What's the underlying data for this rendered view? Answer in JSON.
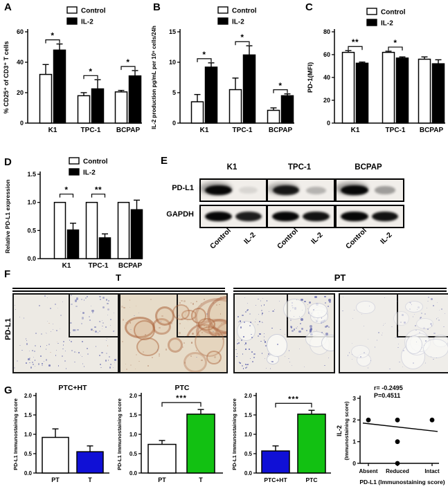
{
  "panel_labels": {
    "a": "A",
    "b": "B",
    "c": "C",
    "d": "D",
    "e": "E",
    "f": "F",
    "g": "G"
  },
  "colors": {
    "control_fill": "#ffffff",
    "il2_fill": "#000000",
    "axis": "#000000",
    "blue": "#1010d6",
    "green": "#12c112",
    "hematoxylin": "#5c61aa",
    "dab_brown": "#a9653c",
    "tissue_pale": "#edeae4",
    "tissue_dab": "#e7dcc9",
    "tissue_light": "#efede9"
  },
  "chart_data": [
    {
      "id": "A",
      "type": "bar",
      "title": "",
      "ylabel": "% CD25⁺ of CD3⁺ T cells",
      "legend": [
        "Control",
        "IL-2"
      ],
      "categories": [
        "K1",
        "TPC-1",
        "BCPAP"
      ],
      "series": [
        {
          "name": "Control",
          "values": [
            32,
            18,
            20.5
          ],
          "errors": [
            6.5,
            2,
            1
          ]
        },
        {
          "name": "IL-2",
          "values": [
            48,
            22.5,
            31
          ],
          "errors": [
            4,
            6,
            3.5
          ]
        }
      ],
      "ylim": [
        0,
        60
      ],
      "yticks": [
        0,
        20,
        40,
        60
      ],
      "ytick_decimals": 0,
      "sig": [
        "*",
        "*",
        "*"
      ]
    },
    {
      "id": "B",
      "type": "bar",
      "title": "",
      "ylabel": "IL-2 production pg/mL per 10⁶ cells/24h",
      "legend": [
        "Control",
        "IL-2"
      ],
      "categories": [
        "K1",
        "TPC-1",
        "BCPAP"
      ],
      "series": [
        {
          "name": "Control",
          "values": [
            3.5,
            5.5,
            2.1
          ],
          "errors": [
            1.2,
            1.9,
            0.4
          ]
        },
        {
          "name": "IL-2",
          "values": [
            9.2,
            11.2,
            4.5
          ],
          "errors": [
            0.7,
            1.5,
            0.3
          ]
        }
      ],
      "ylim": [
        0,
        15
      ],
      "yticks": [
        0,
        5,
        10,
        15
      ],
      "ytick_decimals": 0,
      "sig": [
        "*",
        "*",
        "*"
      ]
    },
    {
      "id": "C",
      "type": "bar",
      "title": "",
      "ylabel": "PD-1(MFI)",
      "legend": [
        "Control",
        "IL-2"
      ],
      "categories": [
        "K1",
        "TPC-1",
        "BCPAP"
      ],
      "series": [
        {
          "name": "Control",
          "values": [
            62,
            62,
            56
          ],
          "errors": [
            1.5,
            1,
            2
          ]
        },
        {
          "name": "IL-2",
          "values": [
            52.5,
            57,
            52
          ],
          "errors": [
            1,
            1,
            3.5
          ]
        }
      ],
      "ylim": [
        0,
        80
      ],
      "yticks": [
        0,
        20,
        40,
        60,
        80
      ],
      "ytick_decimals": 0,
      "sig": [
        "**",
        "*",
        ""
      ]
    },
    {
      "id": "D",
      "type": "bar",
      "title": "",
      "ylabel": "Relative PD-L1 expression",
      "legend": [
        "Control",
        "IL-2"
      ],
      "categories": [
        "K1",
        "TPC-1",
        "BCPAP"
      ],
      "series": [
        {
          "name": "Control",
          "values": [
            1.0,
            1.0,
            1.0
          ],
          "errors": [
            0,
            0,
            0
          ]
        },
        {
          "name": "IL-2",
          "values": [
            0.51,
            0.37,
            0.87
          ],
          "errors": [
            0.12,
            0.07,
            0.17
          ]
        }
      ],
      "ylim": [
        0,
        1.5
      ],
      "yticks": [
        0,
        0.5,
        1.0,
        1.5
      ],
      "ytick_decimals": 1,
      "sig": [
        "*",
        "**",
        ""
      ]
    },
    {
      "id": "G1",
      "type": "bar",
      "title": "PTC+HT",
      "ylabel": "PD-L1 Immunostaining score",
      "categories": [
        "PT",
        "T"
      ],
      "values": [
        0.92,
        0.55
      ],
      "errors": [
        0.22,
        0.15
      ],
      "bar_colors": [
        "#ffffff",
        "#1010d6"
      ],
      "ylim": [
        0,
        2
      ],
      "yticks": [
        0,
        0.5,
        1.0,
        1.5,
        2.0
      ],
      "ytick_decimals": 1,
      "sig_pair": ""
    },
    {
      "id": "G2",
      "type": "bar",
      "title": "PTC",
      "ylabel": "PD-L1 Immunostaining score",
      "categories": [
        "PT",
        "T"
      ],
      "values": [
        0.74,
        1.52
      ],
      "errors": [
        0.1,
        0.12
      ],
      "bar_colors": [
        "#ffffff",
        "#12c112"
      ],
      "ylim": [
        0,
        2
      ],
      "yticks": [
        0,
        0.5,
        1.0,
        1.5,
        2.0
      ],
      "ytick_decimals": 1,
      "sig_pair": "***"
    },
    {
      "id": "G3",
      "type": "bar",
      "title": "",
      "ylabel": "PD-L1 Immunostaining score",
      "categories": [
        "PTC+HT",
        "PTC"
      ],
      "values": [
        0.57,
        1.52
      ],
      "errors": [
        0.13,
        0.1
      ],
      "bar_colors": [
        "#1010d6",
        "#12c112"
      ],
      "ylim": [
        0,
        2
      ],
      "yticks": [
        0,
        0.5,
        1.0,
        1.5,
        2.0
      ],
      "ytick_decimals": 1,
      "sig_pair": "***"
    },
    {
      "id": "G4",
      "type": "scatter",
      "annotation": [
        "r= -0.2495",
        "P=0.4511"
      ],
      "ylabel": "IL-2",
      "ylabel2": "(Immunostaining score)",
      "xlabel": "PD-L1 (Immunostaining score)",
      "xticks": [
        "Absent",
        "Reduced",
        "Intact"
      ],
      "ylim": [
        0,
        3
      ],
      "yticks": [
        0,
        1,
        2,
        3
      ],
      "ytick_decimals": 0,
      "points": [
        [
          0,
          2
        ],
        [
          1,
          0
        ],
        [
          1,
          1
        ],
        [
          1,
          2
        ],
        [
          2,
          2
        ]
      ],
      "trend": {
        "y_start": 1.86,
        "y_end": 1.47
      }
    }
  ],
  "blot": {
    "rows": [
      "PD-L1",
      "GAPDH"
    ],
    "groups": [
      "K1",
      "TPC-1",
      "BCPAP"
    ],
    "lanes": [
      "Control",
      "IL-2"
    ],
    "band_intensity": {
      "PD-L1": [
        [
          0.95,
          0.05
        ],
        [
          0.85,
          0.2
        ],
        [
          0.95,
          0.3
        ]
      ],
      "GAPDH": [
        [
          0.95,
          0.85
        ],
        [
          0.95,
          0.9
        ],
        [
          0.95,
          0.9
        ]
      ]
    }
  },
  "ihc": {
    "row_label": "PD-L1",
    "groups": [
      {
        "label": "T"
      },
      {
        "label": "PT"
      }
    ]
  }
}
